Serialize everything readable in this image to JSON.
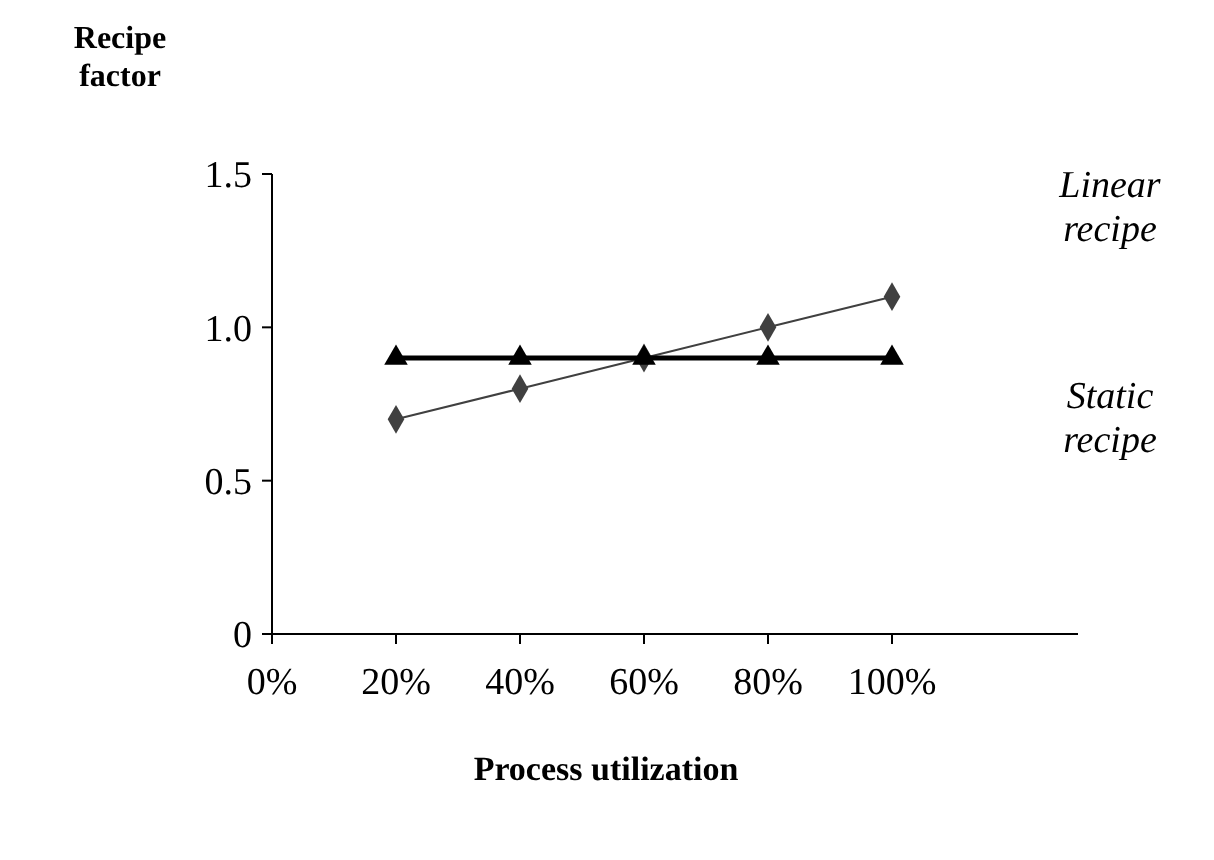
{
  "chart_data": {
    "type": "line",
    "xlabel": "Process utilization",
    "ylabel": "Recipe factor",
    "x": [
      20,
      40,
      60,
      80,
      100
    ],
    "series": [
      {
        "name": "Linear recipe",
        "color": "#404040",
        "marker": "diamond",
        "values": [
          0.7,
          0.8,
          0.9,
          1.0,
          1.1
        ]
      },
      {
        "name": "Static recipe",
        "color": "#000000",
        "marker": "triangle",
        "values": [
          0.9,
          0.9,
          0.9,
          0.9,
          0.9
        ]
      }
    ],
    "xlim": [
      0,
      130
    ],
    "xticks": [
      {
        "value": 0,
        "label": "0%"
      },
      {
        "value": 20,
        "label": "20%"
      },
      {
        "value": 40,
        "label": "40%"
      },
      {
        "value": 60,
        "label": "60%"
      },
      {
        "value": 80,
        "label": "80%"
      },
      {
        "value": 100,
        "label": "100%"
      }
    ],
    "ylim": [
      0,
      1.5
    ],
    "yticks": [
      {
        "value": 0,
        "label": "0"
      },
      {
        "value": 0.5,
        "label": "0.5"
      },
      {
        "value": 1,
        "label": "1.0"
      },
      {
        "value": 1.5,
        "label": "1.5"
      }
    ],
    "grid": false
  }
}
